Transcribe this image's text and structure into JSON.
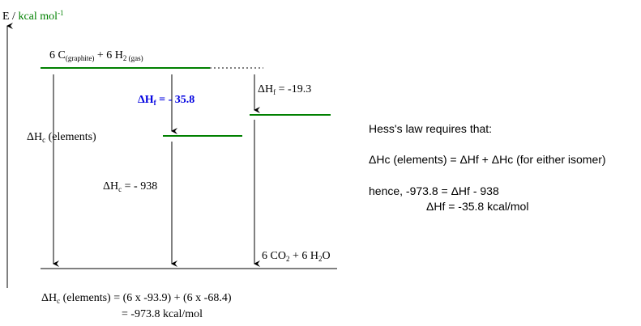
{
  "axis": {
    "label_prefix": "E / ",
    "unit": "kcal mol",
    "unit_exp": "-1",
    "unit_color": "#008000"
  },
  "levels": {
    "elements": {
      "lhs": "6 C",
      "lhs_sub": "(graphite)",
      "mid": " + 6 H",
      "mid_sub": "2 (gas)"
    },
    "products": {
      "a": "6 CO",
      "a_sub": "2",
      "b": " +  6 H",
      "b_sub": "2",
      "c": "O"
    },
    "level_color": "#008000",
    "highlight_color": "#0000e0"
  },
  "annotations": {
    "dhc_elements": {
      "delta": "Δ",
      "H": "H",
      "sub": "c",
      "rest": " (elements)"
    },
    "dhc_isomer": {
      "delta": "Δ",
      "H": "H",
      "sub": "c",
      "rest": " = - 938"
    },
    "dhf_bold": {
      "delta": "Δ",
      "H": "H",
      "sub": "f",
      "rest": " = - 35.8"
    },
    "dhf_other": {
      "delta": "Δ",
      "H": "H",
      "sub": "f",
      "rest": " = -19.3"
    }
  },
  "hess": {
    "line1": "Hess's law requires that:",
    "line2": "ΔHc (elements) = ΔHf + ΔHc (for either isomer)",
    "line3": "hence, -973.8 = ΔHf - 938",
    "line4": "ΔHf = -35.8 kcal/mol"
  },
  "bottom": {
    "delta": "Δ",
    "H": "H",
    "sub": "c",
    "rest": " (elements)  = (6 x -93.9) + (6 x -68.4)",
    "line2": "= -973.8 kcal/mol"
  }
}
